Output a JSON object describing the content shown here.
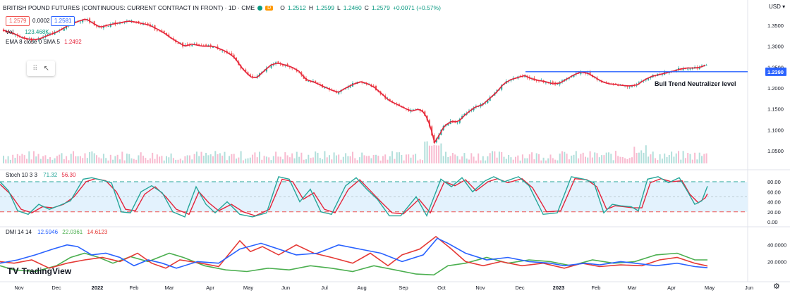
{
  "header": {
    "symbol": "BRITISH POUND FUTURES (CONTINUOUS: CURRENT CONTRACT IN FRONT) · 1D · CME",
    "badge": "D",
    "o_label": "O",
    "o_val": "1.2512",
    "h_label": "H",
    "h_val": "1.2599",
    "l_label": "L",
    "l_val": "1.2460",
    "c_label": "C",
    "c_val": "1.2579",
    "change": "+0.0071 (+0.57%)",
    "bid": "1.2579",
    "spread": "0.0002",
    "ask": "1.2581"
  },
  "indicators": {
    "vol_label": "Vol",
    "vol_val": "123.468K",
    "ema_label": "EMA 8 close 0 SMA 5",
    "ema_val": "1.2492",
    "stoch_label": "Stoch 10 3 3",
    "stoch_k": "71.32",
    "stoch_d": "56.30",
    "dmi_label": "DMI 14 14",
    "dmi_plus": "12.5946",
    "dmi_minus": "22.0361",
    "dmi_adx": "14.6123"
  },
  "annotation": {
    "text": "Bull Trend Neutralizer level",
    "level_label": "1.2390"
  },
  "currency": "USD",
  "logo_text": "TradingView",
  "colors": {
    "up": "#26a69a",
    "down": "#ef5350",
    "ema": "#e5243b",
    "hline": "#2962ff",
    "stochK": "#26a69a",
    "stochD": "#e5243b",
    "diPlus": "#2962ff",
    "diMinus": "#4caf50",
    "adx": "#e53935",
    "band": "#e3f2fd"
  },
  "chart_data": {
    "type": "candlestick",
    "x_tick_labels": [
      "Nov",
      "Dec",
      "2022",
      "Feb",
      "Mar",
      "Apr",
      "May",
      "Jun",
      "Jul",
      "Aug",
      "Sep",
      "Oct",
      "Nov",
      "Dec",
      "2023",
      "Feb",
      "Mar",
      "Apr",
      "May",
      "Jun"
    ],
    "price_axis": {
      "ticks": [
        1.35,
        1.3,
        1.25,
        1.2,
        1.15,
        1.1,
        1.05
      ],
      "tick_labels": [
        "1.3500",
        "1.3000",
        "1.2500",
        "1.2000",
        "1.1500",
        "1.1000",
        "1.0500"
      ],
      "range": [
        1.02,
        1.38
      ]
    },
    "stoch_axis": {
      "ticks": [
        80,
        60,
        40,
        20,
        0
      ],
      "tick_labels": [
        "80.00",
        "60.00",
        "40.00",
        "20.00",
        "0.00"
      ],
      "band": [
        20,
        80
      ]
    },
    "dmi_axis": {
      "ticks": [
        40,
        20
      ],
      "tick_labels": [
        "40.0000",
        "20.0000"
      ],
      "range": [
        0,
        55
      ]
    },
    "horizontal_level": 1.239,
    "close_path": [
      [
        0,
        1.34
      ],
      [
        8,
        1.335
      ],
      [
        18,
        1.33
      ],
      [
        30,
        1.32
      ],
      [
        45,
        1.315
      ],
      [
        55,
        1.318
      ],
      [
        65,
        1.325
      ],
      [
        80,
        1.335
      ],
      [
        95,
        1.35
      ],
      [
        110,
        1.36
      ],
      [
        120,
        1.365
      ],
      [
        130,
        1.355
      ],
      [
        140,
        1.345
      ],
      [
        150,
        1.35
      ],
      [
        165,
        1.355
      ],
      [
        180,
        1.36
      ],
      [
        195,
        1.356
      ],
      [
        210,
        1.35
      ],
      [
        222,
        1.34
      ],
      [
        232,
        1.33
      ],
      [
        240,
        1.32
      ],
      [
        250,
        1.31
      ],
      [
        260,
        1.3
      ],
      [
        270,
        1.305
      ],
      [
        285,
        1.3
      ],
      [
        300,
        1.3
      ],
      [
        315,
        1.29
      ],
      [
        325,
        1.28
      ],
      [
        332,
        1.27
      ],
      [
        340,
        1.25
      ],
      [
        348,
        1.235
      ],
      [
        355,
        1.225
      ],
      [
        362,
        1.225
      ],
      [
        372,
        1.24
      ],
      [
        382,
        1.255
      ],
      [
        392,
        1.26
      ],
      [
        402,
        1.255
      ],
      [
        412,
        1.25
      ],
      [
        422,
        1.24
      ],
      [
        432,
        1.22
      ],
      [
        442,
        1.215
      ],
      [
        455,
        1.205
      ],
      [
        468,
        1.195
      ],
      [
        478,
        1.19
      ],
      [
        488,
        1.2
      ],
      [
        500,
        1.21
      ],
      [
        510,
        1.215
      ],
      [
        520,
        1.21
      ],
      [
        530,
        1.2
      ],
      [
        540,
        1.185
      ],
      [
        550,
        1.17
      ],
      [
        562,
        1.16
      ],
      [
        574,
        1.15
      ],
      [
        582,
        1.145
      ],
      [
        592,
        1.15
      ],
      [
        600,
        1.14
      ],
      [
        608,
        1.11
      ],
      [
        614,
        1.07
      ],
      [
        620,
        1.085
      ],
      [
        628,
        1.11
      ],
      [
        638,
        1.12
      ],
      [
        648,
        1.12
      ],
      [
        660,
        1.14
      ],
      [
        672,
        1.155
      ],
      [
        682,
        1.16
      ],
      [
        692,
        1.175
      ],
      [
        702,
        1.19
      ],
      [
        712,
        1.21
      ],
      [
        722,
        1.22
      ],
      [
        732,
        1.225
      ],
      [
        742,
        1.23
      ],
      [
        752,
        1.222
      ],
      [
        762,
        1.218
      ],
      [
        772,
        1.215
      ],
      [
        782,
        1.21
      ],
      [
        792,
        1.212
      ],
      [
        802,
        1.222
      ],
      [
        812,
        1.232
      ],
      [
        822,
        1.238
      ],
      [
        832,
        1.235
      ],
      [
        842,
        1.225
      ],
      [
        852,
        1.215
      ],
      [
        862,
        1.21
      ],
      [
        872,
        1.208
      ],
      [
        882,
        1.206
      ],
      [
        892,
        1.205
      ],
      [
        902,
        1.208
      ],
      [
        912,
        1.22
      ],
      [
        922,
        1.228
      ],
      [
        932,
        1.232
      ],
      [
        942,
        1.236
      ],
      [
        952,
        1.24
      ],
      [
        962,
        1.245
      ],
      [
        972,
        1.248
      ],
      [
        982,
        1.248
      ],
      [
        992,
        1.25
      ],
      [
        1002,
        1.258
      ]
    ],
    "stoch_path": {
      "k": [
        [
          0,
          80
        ],
        [
          12,
          62
        ],
        [
          25,
          22
        ],
        [
          40,
          15
        ],
        [
          55,
          35
        ],
        [
          70,
          25
        ],
        [
          85,
          33
        ],
        [
          100,
          42
        ],
        [
          118,
          85
        ],
        [
          130,
          88
        ],
        [
          145,
          83
        ],
        [
          158,
          78
        ],
        [
          172,
          20
        ],
        [
          185,
          18
        ],
        [
          200,
          60
        ],
        [
          215,
          72
        ],
        [
          230,
          58
        ],
        [
          245,
          20
        ],
        [
          262,
          10
        ],
        [
          278,
          70
        ],
        [
          292,
          35
        ],
        [
          305,
          18
        ],
        [
          322,
          40
        ],
        [
          340,
          15
        ],
        [
          358,
          10
        ],
        [
          378,
          18
        ],
        [
          395,
          90
        ],
        [
          410,
          85
        ],
        [
          425,
          40
        ],
        [
          440,
          65
        ],
        [
          455,
          20
        ],
        [
          470,
          15
        ],
        [
          490,
          72
        ],
        [
          505,
          88
        ],
        [
          520,
          65
        ],
        [
          535,
          45
        ],
        [
          552,
          12
        ],
        [
          568,
          12
        ],
        [
          590,
          50
        ],
        [
          605,
          12
        ],
        [
          625,
          85
        ],
        [
          640,
          70
        ],
        [
          655,
          88
        ],
        [
          670,
          60
        ],
        [
          688,
          82
        ],
        [
          700,
          90
        ],
        [
          715,
          80
        ],
        [
          735,
          90
        ],
        [
          750,
          72
        ],
        [
          770,
          15
        ],
        [
          790,
          18
        ],
        [
          810,
          90
        ],
        [
          828,
          85
        ],
        [
          842,
          78
        ],
        [
          856,
          18
        ],
        [
          868,
          35
        ],
        [
          880,
          32
        ],
        [
          895,
          30
        ],
        [
          905,
          22
        ],
        [
          918,
          85
        ],
        [
          933,
          90
        ],
        [
          948,
          78
        ],
        [
          963,
          88
        ],
        [
          975,
          60
        ],
        [
          985,
          35
        ],
        [
          995,
          42
        ],
        [
          1003,
          71
        ]
      ],
      "d": [
        [
          0,
          75
        ],
        [
          15,
          55
        ],
        [
          30,
          25
        ],
        [
          45,
          18
        ],
        [
          60,
          30
        ],
        [
          75,
          28
        ],
        [
          90,
          35
        ],
        [
          105,
          50
        ],
        [
          122,
          80
        ],
        [
          135,
          86
        ],
        [
          150,
          82
        ],
        [
          165,
          60
        ],
        [
          178,
          25
        ],
        [
          192,
          22
        ],
        [
          205,
          55
        ],
        [
          220,
          70
        ],
        [
          235,
          50
        ],
        [
          250,
          25
        ],
        [
          268,
          15
        ],
        [
          282,
          60
        ],
        [
          296,
          38
        ],
        [
          310,
          22
        ],
        [
          328,
          35
        ],
        [
          345,
          20
        ],
        [
          362,
          12
        ],
        [
          382,
          25
        ],
        [
          400,
          85
        ],
        [
          415,
          80
        ],
        [
          430,
          45
        ],
        [
          445,
          58
        ],
        [
          460,
          25
        ],
        [
          475,
          18
        ],
        [
          494,
          65
        ],
        [
          510,
          84
        ],
        [
          525,
          62
        ],
        [
          540,
          40
        ],
        [
          556,
          18
        ],
        [
          572,
          16
        ],
        [
          594,
          45
        ],
        [
          610,
          18
        ],
        [
          630,
          80
        ],
        [
          645,
          72
        ],
        [
          660,
          84
        ],
        [
          675,
          62
        ],
        [
          692,
          80
        ],
        [
          705,
          86
        ],
        [
          720,
          78
        ],
        [
          740,
          86
        ],
        [
          755,
          68
        ],
        [
          775,
          20
        ],
        [
          795,
          22
        ],
        [
          815,
          86
        ],
        [
          832,
          84
        ],
        [
          846,
          70
        ],
        [
          860,
          25
        ],
        [
          872,
          32
        ],
        [
          885,
          30
        ],
        [
          898,
          28
        ],
        [
          910,
          28
        ],
        [
          922,
          78
        ],
        [
          937,
          86
        ],
        [
          952,
          80
        ],
        [
          967,
          82
        ],
        [
          978,
          55
        ],
        [
          990,
          38
        ],
        [
          1000,
          48
        ],
        [
          1003,
          56
        ]
      ]
    },
    "dmi_path": {
      "di_plus": [
        [
          0,
          18
        ],
        [
          25,
          22
        ],
        [
          50,
          28
        ],
        [
          75,
          35
        ],
        [
          95,
          40
        ],
        [
          110,
          38
        ],
        [
          130,
          28
        ],
        [
          150,
          30
        ],
        [
          170,
          25
        ],
        [
          190,
          15
        ],
        [
          210,
          22
        ],
        [
          230,
          18
        ],
        [
          250,
          12
        ],
        [
          280,
          20
        ],
        [
          310,
          18
        ],
        [
          340,
          35
        ],
        [
          370,
          42
        ],
        [
          395,
          35
        ],
        [
          420,
          28
        ],
        [
          450,
          30
        ],
        [
          480,
          40
        ],
        [
          510,
          35
        ],
        [
          540,
          30
        ],
        [
          570,
          20
        ],
        [
          600,
          28
        ],
        [
          620,
          48
        ],
        [
          635,
          42
        ],
        [
          660,
          30
        ],
        [
          690,
          22
        ],
        [
          720,
          25
        ],
        [
          750,
          20
        ],
        [
          780,
          18
        ],
        [
          800,
          15
        ],
        [
          830,
          18
        ],
        [
          850,
          16
        ],
        [
          880,
          20
        ],
        [
          900,
          18
        ],
        [
          930,
          15
        ],
        [
          960,
          18
        ],
        [
          985,
          14
        ],
        [
          1003,
          12.6
        ]
      ],
      "di_minus": [
        [
          0,
          15
        ],
        [
          20,
          10
        ],
        [
          50,
          8
        ],
        [
          80,
          15
        ],
        [
          100,
          25
        ],
        [
          120,
          30
        ],
        [
          140,
          25
        ],
        [
          160,
          18
        ],
        [
          185,
          26
        ],
        [
          210,
          20
        ],
        [
          240,
          30
        ],
        [
          260,
          25
        ],
        [
          290,
          15
        ],
        [
          320,
          10
        ],
        [
          350,
          8
        ],
        [
          380,
          12
        ],
        [
          410,
          10
        ],
        [
          440,
          15
        ],
        [
          470,
          12
        ],
        [
          500,
          8
        ],
        [
          530,
          15
        ],
        [
          560,
          10
        ],
        [
          590,
          5
        ],
        [
          615,
          4
        ],
        [
          635,
          15
        ],
        [
          660,
          18
        ],
        [
          690,
          25
        ],
        [
          720,
          18
        ],
        [
          750,
          22
        ],
        [
          780,
          20
        ],
        [
          810,
          15
        ],
        [
          840,
          22
        ],
        [
          870,
          18
        ],
        [
          900,
          20
        ],
        [
          930,
          28
        ],
        [
          960,
          30
        ],
        [
          985,
          22
        ],
        [
          1003,
          22
        ]
      ],
      "adx": [
        [
          0,
          20
        ],
        [
          20,
          18
        ],
        [
          45,
          22
        ],
        [
          70,
          12
        ],
        [
          95,
          18
        ],
        [
          120,
          22
        ],
        [
          145,
          25
        ],
        [
          170,
          20
        ],
        [
          195,
          30
        ],
        [
          215,
          18
        ],
        [
          235,
          12
        ],
        [
          255,
          22
        ],
        [
          285,
          18
        ],
        [
          310,
          14
        ],
        [
          340,
          45
        ],
        [
          355,
          32
        ],
        [
          372,
          38
        ],
        [
          395,
          28
        ],
        [
          420,
          40
        ],
        [
          445,
          30
        ],
        [
          470,
          25
        ],
        [
          500,
          18
        ],
        [
          525,
          30
        ],
        [
          550,
          15
        ],
        [
          570,
          28
        ],
        [
          595,
          35
        ],
        [
          618,
          50
        ],
        [
          640,
          35
        ],
        [
          660,
          20
        ],
        [
          685,
          15
        ],
        [
          710,
          20
        ],
        [
          740,
          15
        ],
        [
          770,
          18
        ],
        [
          800,
          12
        ],
        [
          825,
          18
        ],
        [
          850,
          14
        ],
        [
          880,
          16
        ],
        [
          910,
          15
        ],
        [
          935,
          22
        ],
        [
          960,
          25
        ],
        [
          985,
          18
        ],
        [
          1003,
          14.6
        ]
      ]
    }
  }
}
